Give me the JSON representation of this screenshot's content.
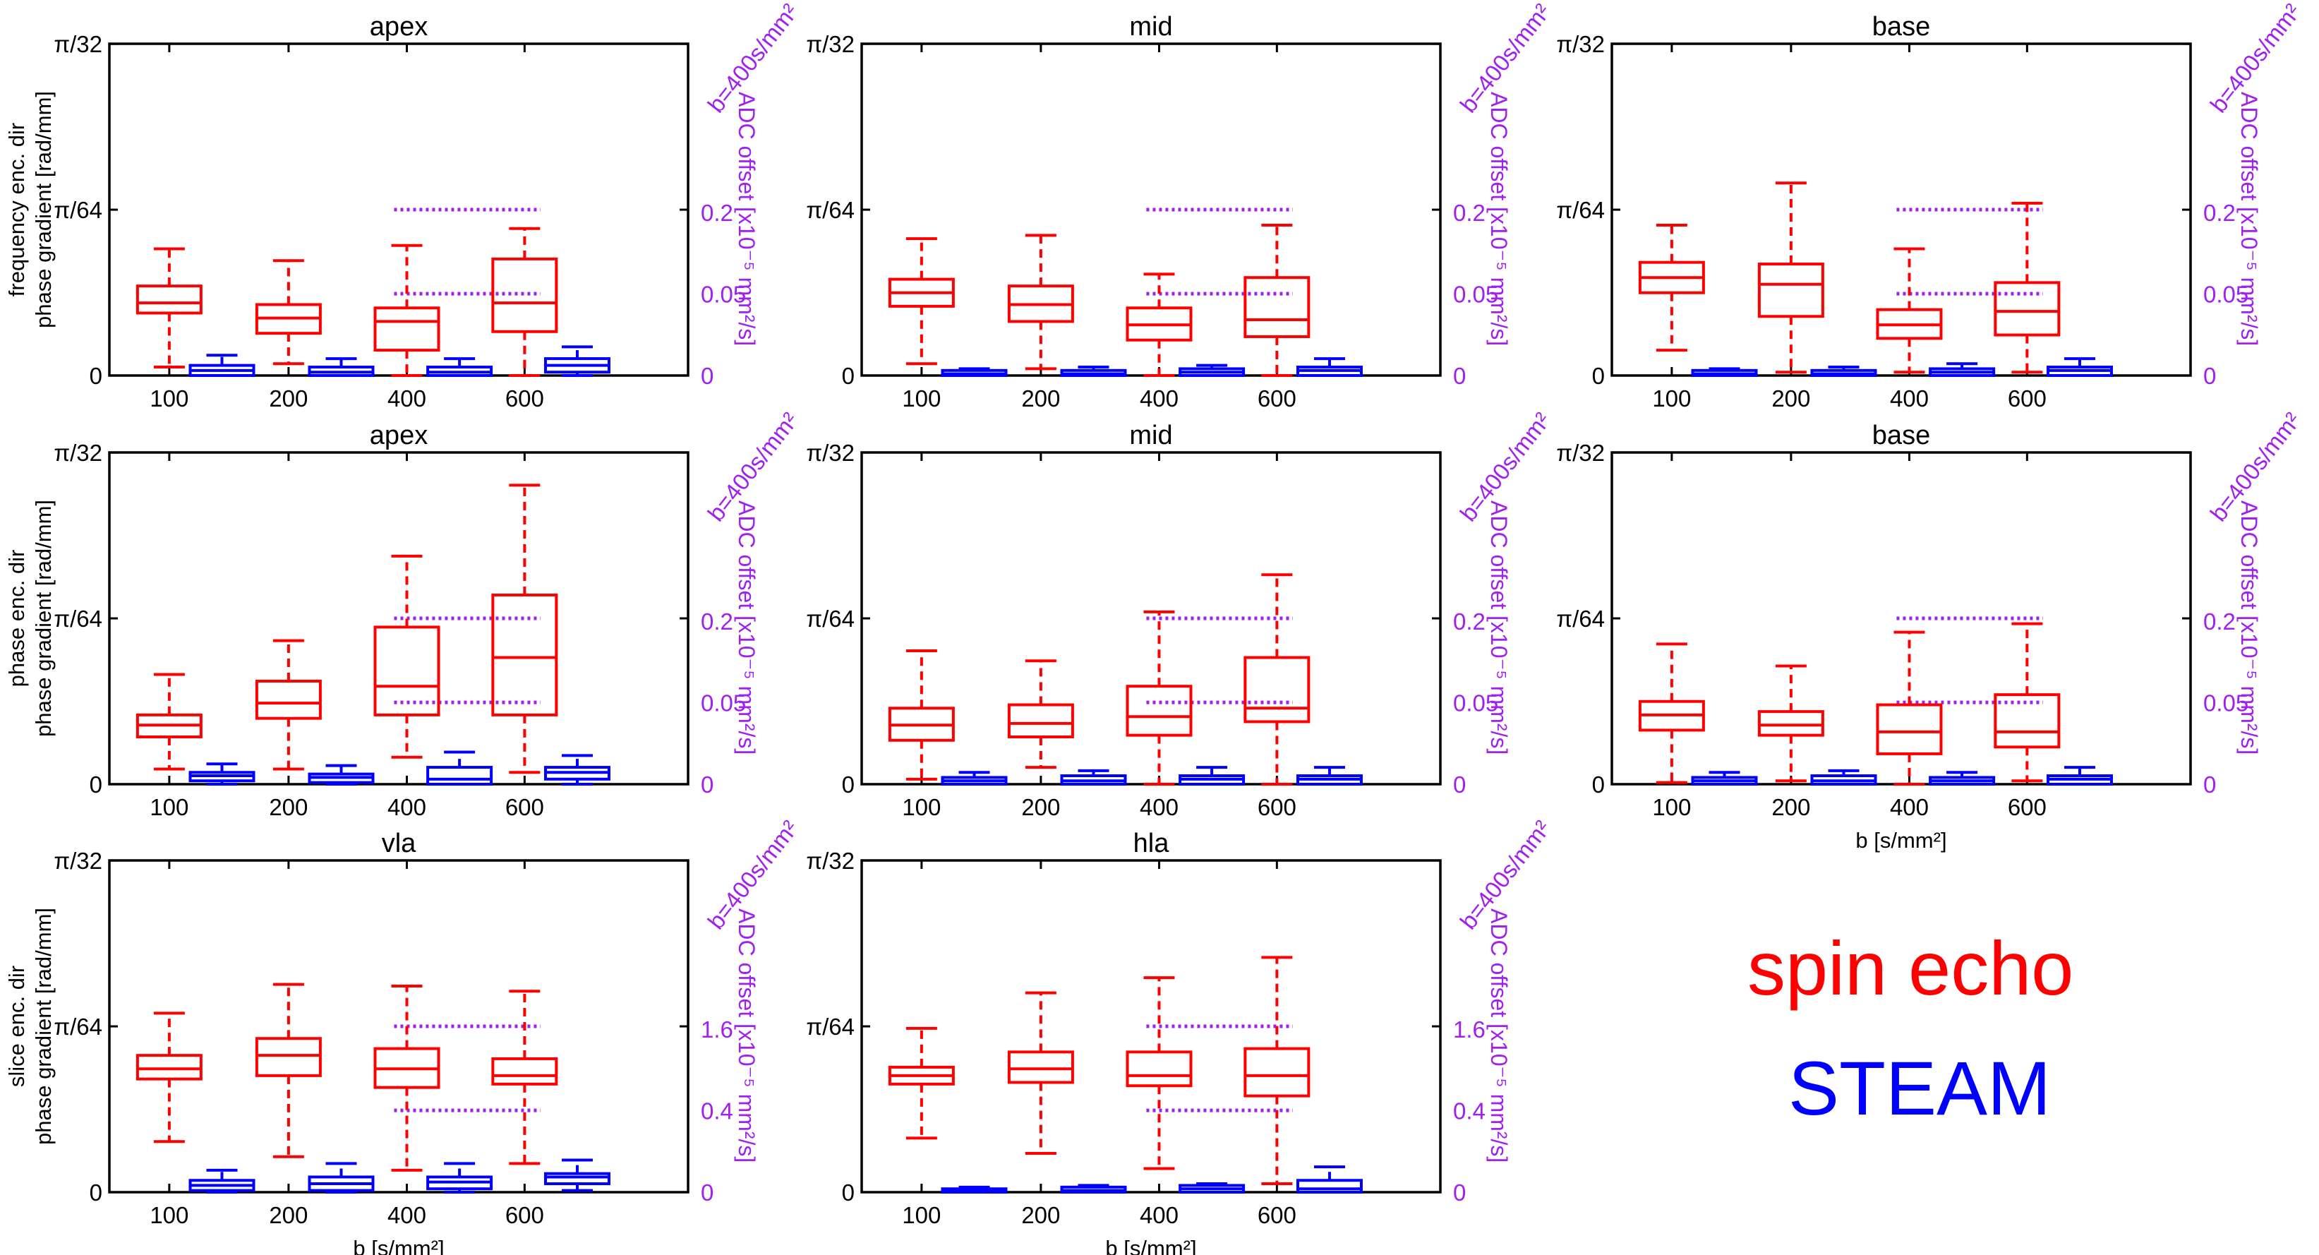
{
  "figure": {
    "xlabel": "b [s/mm²]",
    "ytick_labels": [
      "0",
      "π/64",
      "π/32"
    ],
    "ylim": [
      0,
      0.0982
    ],
    "color_spin_echo": "#ff0000",
    "color_steam": "#0000ff",
    "color_adc": "#a020f0",
    "legend": [
      {
        "label": "spin echo",
        "color": "#ff0000"
      },
      {
        "label": "STEAM",
        "color": "#0000ff"
      }
    ]
  },
  "row_labels": [
    {
      "line1": "frequency enc. dir",
      "line2": "phase gradient [rad/mm]"
    },
    {
      "line1": "phase enc. dir",
      "line2": "phase gradient [rad/mm]"
    },
    {
      "line1": "slice enc. dir",
      "line2": "phase gradient [rad/mm]"
    }
  ],
  "chart_data": [
    {
      "type": "box",
      "title": "apex",
      "row": 0,
      "col": 0,
      "categories": [
        "100",
        "200",
        "400",
        "600"
      ],
      "right_axis": {
        "label_top": "b=400s/mm²",
        "label": "ADC offset [x10⁻⁵ mm²/s]",
        "ticks": [
          "0",
          "0.05",
          "0.2"
        ]
      },
      "adc_lines": [
        0.0242,
        0.0491
      ],
      "show_xlabel": false,
      "spin_echo": [
        [
          0.0025,
          0.0185,
          0.0215,
          0.0265,
          0.0375
        ],
        [
          0.0035,
          0.0125,
          0.017,
          0.021,
          0.034
        ],
        [
          0.0,
          0.0075,
          0.016,
          0.02,
          0.0385
        ],
        [
          0.0,
          0.013,
          0.0215,
          0.0345,
          0.0435
        ]
      ],
      "steam": [
        [
          0.0,
          0.0,
          0.0015,
          0.003,
          0.006
        ],
        [
          0.0,
          0.0,
          0.001,
          0.0025,
          0.005
        ],
        [
          0.0,
          0.0,
          0.001,
          0.0025,
          0.005
        ],
        [
          0.0,
          0.001,
          0.003,
          0.005,
          0.0085
        ]
      ]
    },
    {
      "type": "box",
      "title": "mid",
      "row": 0,
      "col": 1,
      "categories": [
        "100",
        "200",
        "400",
        "600"
      ],
      "right_axis": {
        "label_top": "b=400s/mm²",
        "label": "ADC offset [x10⁻⁵ mm²/s]",
        "ticks": [
          "0",
          "0.05",
          "0.2"
        ]
      },
      "adc_lines": [
        0.0242,
        0.0491
      ],
      "show_xlabel": false,
      "spin_echo": [
        [
          0.0035,
          0.0205,
          0.0245,
          0.0285,
          0.0405
        ],
        [
          0.002,
          0.016,
          0.021,
          0.0265,
          0.0415
        ],
        [
          0.0,
          0.0105,
          0.015,
          0.02,
          0.03
        ],
        [
          0.0,
          0.0115,
          0.0165,
          0.029,
          0.0445
        ]
      ],
      "steam": [
        [
          0.0,
          0.0,
          0.0005,
          0.0015,
          0.002
        ],
        [
          0.0,
          0.0,
          0.0005,
          0.0015,
          0.0025
        ],
        [
          0.0,
          0.0,
          0.001,
          0.002,
          0.003
        ],
        [
          0.0,
          0.0,
          0.0015,
          0.0025,
          0.005
        ]
      ]
    },
    {
      "type": "box",
      "title": "base",
      "row": 0,
      "col": 2,
      "categories": [
        "100",
        "200",
        "400",
        "600"
      ],
      "right_axis": {
        "label_top": "b=400s/mm²",
        "label": "ADC offset [x10⁻⁵ mm²/s]",
        "ticks": [
          "0",
          "0.05",
          "0.2"
        ]
      },
      "adc_lines": [
        0.0242,
        0.0491
      ],
      "show_xlabel": false,
      "spin_echo": [
        [
          0.0075,
          0.0245,
          0.029,
          0.0335,
          0.0445
        ],
        [
          0.001,
          0.0175,
          0.027,
          0.033,
          0.057
        ],
        [
          0.001,
          0.011,
          0.015,
          0.0195,
          0.0375
        ],
        [
          0.001,
          0.012,
          0.019,
          0.0275,
          0.051
        ]
      ],
      "steam": [
        [
          0.0,
          0.0,
          0.0005,
          0.0015,
          0.002
        ],
        [
          0.0,
          0.0,
          0.0005,
          0.0015,
          0.0025
        ],
        [
          0.0,
          0.0,
          0.001,
          0.002,
          0.0035
        ],
        [
          0.0,
          0.0,
          0.0015,
          0.0025,
          0.005
        ]
      ]
    },
    {
      "type": "box",
      "title": "apex",
      "row": 1,
      "col": 0,
      "categories": [
        "100",
        "200",
        "400",
        "600"
      ],
      "right_axis": {
        "label_top": "b=400s/mm²",
        "label": "ADC offset [x10⁻⁵ mm²/s]",
        "ticks": [
          "0",
          "0.05",
          "0.2"
        ]
      },
      "adc_lines": [
        0.0242,
        0.0491
      ],
      "show_xlabel": false,
      "spin_echo": [
        [
          0.0045,
          0.014,
          0.0175,
          0.0205,
          0.0325
        ],
        [
          0.0045,
          0.0195,
          0.024,
          0.0305,
          0.0425
        ],
        [
          0.008,
          0.0205,
          0.029,
          0.0465,
          0.0675
        ],
        [
          0.0035,
          0.0205,
          0.0375,
          0.056,
          0.0885
        ]
      ],
      "steam": [
        [
          0.0,
          0.001,
          0.0025,
          0.0035,
          0.006
        ],
        [
          0.0,
          0.0005,
          0.002,
          0.003,
          0.0055
        ],
        [
          0.0,
          0.0,
          0.0015,
          0.005,
          0.0095
        ],
        [
          0.0,
          0.0015,
          0.0035,
          0.005,
          0.0085
        ]
      ]
    },
    {
      "type": "box",
      "title": "mid",
      "row": 1,
      "col": 1,
      "categories": [
        "100",
        "200",
        "400",
        "600"
      ],
      "right_axis": {
        "label_top": "b=400s/mm²",
        "label": "ADC offset [x10⁻⁵ mm²/s]",
        "ticks": [
          "0",
          "0.05",
          "0.2"
        ]
      },
      "adc_lines": [
        0.0242,
        0.0491
      ],
      "show_xlabel": false,
      "spin_echo": [
        [
          0.0015,
          0.013,
          0.0175,
          0.0225,
          0.0395
        ],
        [
          0.005,
          0.014,
          0.018,
          0.0235,
          0.0365
        ],
        [
          0.0,
          0.0145,
          0.02,
          0.029,
          0.051
        ],
        [
          0.0,
          0.0185,
          0.0225,
          0.0375,
          0.062
        ]
      ],
      "steam": [
        [
          0.0,
          0.0,
          0.001,
          0.002,
          0.0035
        ],
        [
          0.0,
          0.0,
          0.001,
          0.0025,
          0.004
        ],
        [
          0.0,
          0.0,
          0.0015,
          0.0025,
          0.005
        ],
        [
          0.0,
          0.0,
          0.0015,
          0.0025,
          0.005
        ]
      ]
    },
    {
      "type": "box",
      "title": "base",
      "row": 1,
      "col": 2,
      "categories": [
        "100",
        "200",
        "400",
        "600"
      ],
      "right_axis": {
        "label_top": "b=400s/mm²",
        "label": "ADC offset [x10⁻⁵ mm²/s]",
        "ticks": [
          "0",
          "0.05",
          "0.2"
        ]
      },
      "adc_lines": [
        0.0242,
        0.0491
      ],
      "show_xlabel": true,
      "spin_echo": [
        [
          0.0005,
          0.016,
          0.0205,
          0.0245,
          0.0415
        ],
        [
          0.001,
          0.0145,
          0.0175,
          0.0215,
          0.035
        ],
        [
          0.0,
          0.009,
          0.0155,
          0.0235,
          0.045
        ],
        [
          0.001,
          0.011,
          0.0155,
          0.0265,
          0.0475
        ]
      ],
      "steam": [
        [
          0.0,
          0.0,
          0.001,
          0.002,
          0.0035
        ],
        [
          0.0,
          0.0,
          0.001,
          0.0025,
          0.004
        ],
        [
          0.0,
          0.0,
          0.001,
          0.002,
          0.0035
        ],
        [
          0.0,
          0.0,
          0.0015,
          0.0025,
          0.005
        ]
      ]
    },
    {
      "type": "box",
      "title": "vla",
      "row": 2,
      "col": 0,
      "categories": [
        "100",
        "200",
        "400",
        "600"
      ],
      "right_axis": {
        "label_top": "b=400s/mm²",
        "label": "ADC offset [x10⁻⁵ mm²/s]",
        "ticks": [
          "0",
          "0.4",
          "1.6"
        ]
      },
      "adc_lines": [
        0.0242,
        0.0491
      ],
      "show_xlabel": true,
      "spin_echo": [
        [
          0.015,
          0.0335,
          0.0365,
          0.0405,
          0.053
        ],
        [
          0.0105,
          0.0345,
          0.0405,
          0.0455,
          0.0615
        ],
        [
          0.0065,
          0.031,
          0.0365,
          0.0425,
          0.061
        ],
        [
          0.0085,
          0.032,
          0.0345,
          0.0395,
          0.0595
        ]
      ],
      "steam": [
        [
          0.0,
          0.0005,
          0.002,
          0.0035,
          0.0065
        ],
        [
          0.0,
          0.0005,
          0.0025,
          0.0045,
          0.0085
        ],
        [
          0.0,
          0.001,
          0.003,
          0.0045,
          0.0085
        ],
        [
          0.0005,
          0.0025,
          0.0045,
          0.0055,
          0.0095
        ]
      ]
    },
    {
      "type": "box",
      "title": "hla",
      "row": 2,
      "col": 1,
      "categories": [
        "100",
        "200",
        "400",
        "600"
      ],
      "right_axis": {
        "label_top": "b=400s/mm²",
        "label": "ADC offset [x10⁻⁵ mm²/s]",
        "ticks": [
          "0",
          "0.4",
          "1.6"
        ]
      },
      "adc_lines": [
        0.0242,
        0.0491
      ],
      "show_xlabel": true,
      "spin_echo": [
        [
          0.016,
          0.032,
          0.0345,
          0.037,
          0.0485
        ],
        [
          0.0115,
          0.0325,
          0.0365,
          0.0415,
          0.059
        ],
        [
          0.007,
          0.0315,
          0.0345,
          0.0415,
          0.0635
        ],
        [
          0.0025,
          0.0285,
          0.0345,
          0.0425,
          0.0695
        ]
      ],
      "steam": [
        [
          0.0,
          0.0,
          0.0005,
          0.001,
          0.0015
        ],
        [
          0.0,
          0.0,
          0.0005,
          0.0015,
          0.002
        ],
        [
          0.0,
          0.0,
          0.001,
          0.002,
          0.0025
        ],
        [
          0.0,
          0.0,
          0.001,
          0.0035,
          0.0075
        ]
      ]
    }
  ]
}
